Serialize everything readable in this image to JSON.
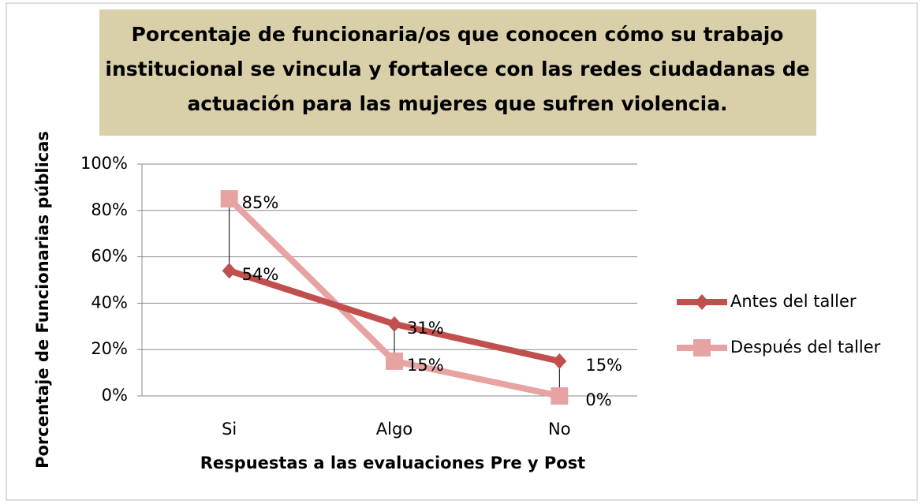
{
  "chart_data": {
    "type": "line",
    "title": [
      "Porcentaje de funcionaria/os que conocen cómo su trabajo",
      "institucional se vincula y fortalece con las redes ciudadanas de",
      "actuación para las mujeres que sufren violencia."
    ],
    "x_label": "Respuestas a las evaluaciones Pre y Post",
    "y_label": "Porcentaje de Funcionarias públicas",
    "categories": [
      "Si",
      "Algo",
      "No"
    ],
    "series": [
      {
        "name": "Antes del taller",
        "color": "#c0504d",
        "marker": "diamond",
        "values": [
          54,
          31,
          15
        ],
        "value_labels": [
          "54%",
          "31%",
          "15%"
        ]
      },
      {
        "name": "Después del taller",
        "color": "#e6a3a2",
        "marker": "square",
        "values": [
          85,
          15,
          0
        ],
        "value_labels": [
          "85%",
          "15%",
          "0%"
        ]
      }
    ],
    "ylim": [
      0,
      100
    ],
    "yticks": [
      {
        "value": 0,
        "label": "0%"
      },
      {
        "value": 20,
        "label": "20%"
      },
      {
        "value": 40,
        "label": "40%"
      },
      {
        "value": 60,
        "label": "60%"
      },
      {
        "value": 80,
        "label": "80%"
      },
      {
        "value": 100,
        "label": "100%"
      }
    ],
    "grid": true,
    "high_low_lines": true,
    "legend": "right"
  }
}
